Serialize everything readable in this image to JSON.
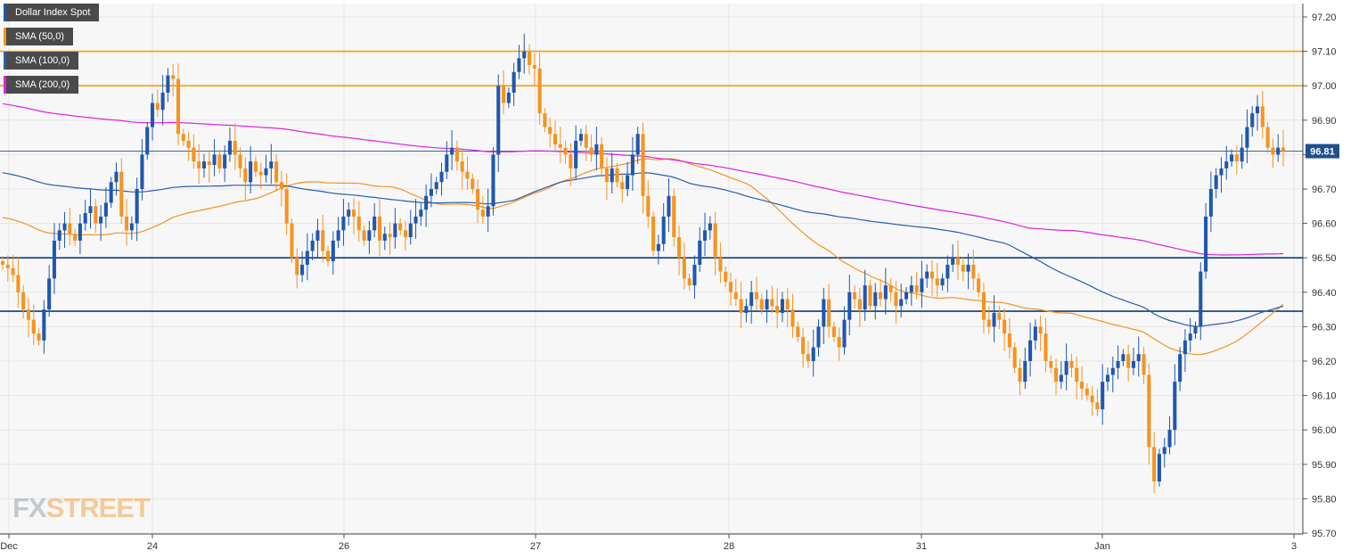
{
  "legend": [
    {
      "label": "Dollar Index Spot",
      "color": "#1f57b0"
    },
    {
      "label": "SMA (50,0)",
      "color": "#f7931e"
    },
    {
      "label": "SMA (100,0)",
      "color": "#2a5db0"
    },
    {
      "label": "SMA (200,0)",
      "color": "#e020e0"
    }
  ],
  "logo": {
    "part1": "FX",
    "part2": "STREET"
  },
  "colors": {
    "bull": "#1f57b0",
    "bear": "#f7931e",
    "sma50": "#f7931e",
    "sma100": "#2a5db0",
    "sma200": "#e020e0",
    "level_orange": "#f7a000",
    "level_blue": "#0d3d7a",
    "grid": "#e6e6e6",
    "price_label_bg": "#1f4f8f"
  },
  "chart_data": {
    "type": "candlestick",
    "title": "Dollar Index Spot",
    "x_tick_labels": [
      "Dec",
      "24",
      "26",
      "27",
      "28",
      "31",
      "Jan",
      "3"
    ],
    "y_ticks": [
      "95.70",
      "95.80",
      "95.90",
      "96.00",
      "96.10",
      "96.20",
      "96.30",
      "96.40",
      "96.50",
      "96.60",
      "96.70",
      "96.80",
      "96.90",
      "97.00",
      "97.10",
      "97.20"
    ],
    "ylim": [
      95.66,
      97.24
    ],
    "last_price": "96.81",
    "horizontal_levels": [
      {
        "value": 97.1,
        "color": "orange"
      },
      {
        "value": 97.0,
        "color": "orange"
      },
      {
        "value": 96.5,
        "color": "blue"
      },
      {
        "value": 96.345,
        "color": "blue"
      }
    ],
    "grid": true,
    "closes": [
      96.48,
      96.47,
      96.45,
      96.4,
      96.35,
      96.32,
      96.28,
      96.26,
      96.35,
      96.44,
      96.55,
      96.58,
      96.6,
      96.57,
      96.55,
      96.6,
      96.63,
      96.65,
      96.6,
      96.62,
      96.66,
      96.72,
      96.75,
      96.62,
      96.58,
      96.6,
      96.7,
      96.8,
      96.88,
      96.95,
      96.93,
      96.98,
      97.03,
      97.02,
      96.86,
      96.84,
      96.82,
      96.78,
      96.76,
      96.78,
      96.77,
      96.8,
      96.76,
      96.8,
      96.84,
      96.8,
      96.76,
      96.72,
      96.78,
      96.75,
      96.74,
      96.76,
      96.78,
      96.72,
      96.7,
      96.6,
      96.5,
      96.45,
      96.48,
      96.52,
      96.55,
      96.58,
      96.52,
      96.49,
      96.55,
      96.58,
      96.62,
      96.64,
      96.62,
      96.58,
      96.55,
      96.58,
      96.62,
      96.55,
      96.57,
      96.56,
      96.6,
      96.58,
      96.56,
      96.6,
      96.62,
      96.64,
      96.68,
      96.7,
      96.72,
      96.75,
      96.8,
      96.82,
      96.78,
      96.75,
      96.73,
      96.7,
      96.64,
      96.62,
      96.65,
      96.8,
      97.0,
      96.95,
      96.98,
      97.04,
      97.08,
      97.1,
      97.06,
      97.05,
      96.92,
      96.88,
      96.86,
      96.83,
      96.82,
      96.8,
      96.76,
      96.84,
      96.86,
      96.82,
      96.8,
      96.83,
      96.76,
      96.72,
      96.76,
      96.72,
      96.7,
      96.74,
      96.8,
      96.86,
      96.68,
      96.62,
      96.52,
      96.54,
      96.62,
      96.68,
      96.56,
      96.5,
      96.44,
      96.42,
      96.48,
      96.55,
      96.58,
      96.6,
      96.5,
      96.46,
      96.43,
      96.4,
      96.38,
      96.34,
      96.36,
      96.4,
      96.38,
      96.35,
      96.38,
      96.36,
      96.34,
      96.38,
      96.35,
      96.3,
      96.27,
      96.22,
      96.2,
      96.24,
      96.3,
      96.38,
      96.3,
      96.27,
      96.24,
      96.32,
      96.4,
      96.38,
      96.35,
      96.42,
      96.36,
      96.4,
      96.38,
      96.42,
      96.4,
      96.36,
      96.38,
      96.4,
      96.42,
      96.4,
      96.44,
      96.46,
      96.44,
      96.42,
      96.44,
      96.48,
      96.5,
      96.48,
      96.46,
      96.48,
      96.44,
      96.4,
      96.32,
      96.3,
      96.34,
      96.32,
      96.28,
      96.24,
      96.18,
      96.14,
      96.2,
      96.26,
      96.3,
      96.28,
      96.2,
      96.18,
      96.14,
      96.16,
      96.2,
      96.18,
      96.14,
      96.12,
      96.1,
      96.08,
      96.06,
      96.14,
      96.16,
      96.18,
      96.2,
      96.22,
      96.18,
      96.2,
      96.22,
      96.16,
      95.95,
      95.85,
      95.93,
      95.95,
      96.0,
      96.14,
      96.22,
      96.26,
      96.28,
      96.3,
      96.46,
      96.62,
      96.7,
      96.74,
      96.76,
      96.78,
      96.8,
      96.78,
      96.82,
      96.88,
      96.92,
      96.94,
      96.88,
      96.82,
      96.8,
      96.82,
      96.81
    ]
  }
}
